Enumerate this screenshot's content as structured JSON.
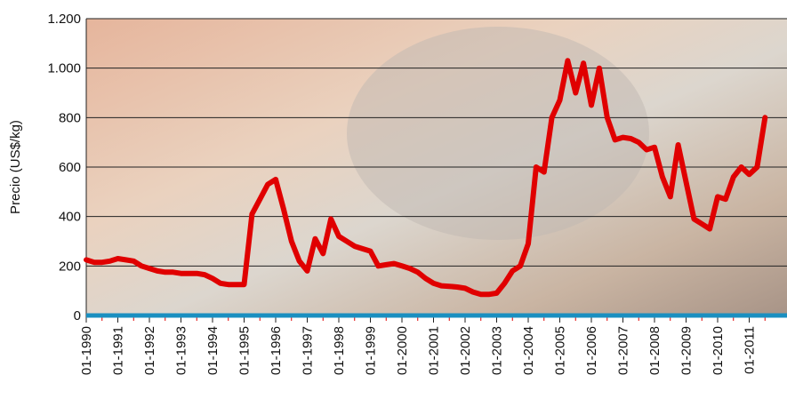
{
  "chart_data": {
    "type": "line",
    "y_label": "Precio (US$/kg)",
    "x": [
      "01-1990",
      "04-1990",
      "07-1990",
      "10-1990",
      "01-1991",
      "04-1991",
      "07-1991",
      "10-1991",
      "01-1992",
      "04-1992",
      "07-1992",
      "10-1992",
      "01-1993",
      "04-1993",
      "07-1993",
      "10-1993",
      "01-1994",
      "04-1994",
      "07-1994",
      "10-1994",
      "01-1995",
      "04-1995",
      "07-1995",
      "10-1995",
      "01-1996",
      "04-1996",
      "07-1996",
      "10-1996",
      "01-1997",
      "04-1997",
      "07-1997",
      "10-1997",
      "01-1998",
      "04-1998",
      "07-1998",
      "10-1998",
      "01-1999",
      "04-1999",
      "07-1999",
      "10-1999",
      "01-2000",
      "04-2000",
      "07-2000",
      "10-2000",
      "01-2001",
      "04-2001",
      "07-2001",
      "10-2001",
      "01-2002",
      "04-2002",
      "07-2002",
      "10-2002",
      "01-2003",
      "04-2003",
      "07-2003",
      "10-2003",
      "01-2004",
      "04-2004",
      "07-2004",
      "10-2004",
      "01-2005",
      "04-2005",
      "07-2005",
      "10-2005",
      "01-2006",
      "04-2006",
      "07-2006",
      "10-2006",
      "01-2007",
      "04-2007",
      "07-2007",
      "10-2007",
      "01-2008",
      "04-2008",
      "07-2008",
      "10-2008",
      "01-2009",
      "04-2009",
      "07-2009",
      "10-2009",
      "01-2010",
      "04-2010",
      "07-2010",
      "10-2010",
      "01-2011",
      "04-2011",
      "07-2011"
    ],
    "series": [
      {
        "name": "Precio",
        "color": "#e00000",
        "values": [
          225,
          215,
          215,
          220,
          230,
          225,
          220,
          200,
          190,
          180,
          175,
          175,
          170,
          170,
          170,
          165,
          150,
          130,
          125,
          125,
          125,
          410,
          470,
          530,
          550,
          430,
          300,
          220,
          180,
          310,
          250,
          390,
          320,
          300,
          280,
          270,
          260,
          200,
          205,
          210,
          200,
          190,
          175,
          150,
          130,
          120,
          118,
          115,
          110,
          95,
          85,
          85,
          90,
          130,
          180,
          200,
          290,
          600,
          580,
          800,
          870,
          1030,
          900,
          1020,
          850,
          1000,
          800,
          710,
          720,
          715,
          700,
          670,
          680,
          560,
          480,
          690,
          540,
          390,
          370,
          350,
          480,
          470,
          560,
          600,
          570,
          600,
          800
        ]
      }
    ],
    "ylim": [
      0,
      1200
    ],
    "yticks": [
      0,
      200,
      400,
      600,
      800,
      {
        "value": 1000,
        "label": "1.000"
      },
      {
        "value": 1200,
        "label": "1.200"
      }
    ],
    "xticks": [
      "01-1990",
      "01-1991",
      "01-1992",
      "01-1993",
      "01-1994",
      "01-1995",
      "01-1996",
      "01-1997",
      "01-1998",
      "01-1999",
      "01-2000",
      "01-2001",
      "01-2002",
      "01-2003",
      "01-2004",
      "01-2005",
      "01-2006",
      "01-2007",
      "01-2008",
      "01-2009",
      "01-2010",
      "01-2011"
    ],
    "grid": true
  }
}
